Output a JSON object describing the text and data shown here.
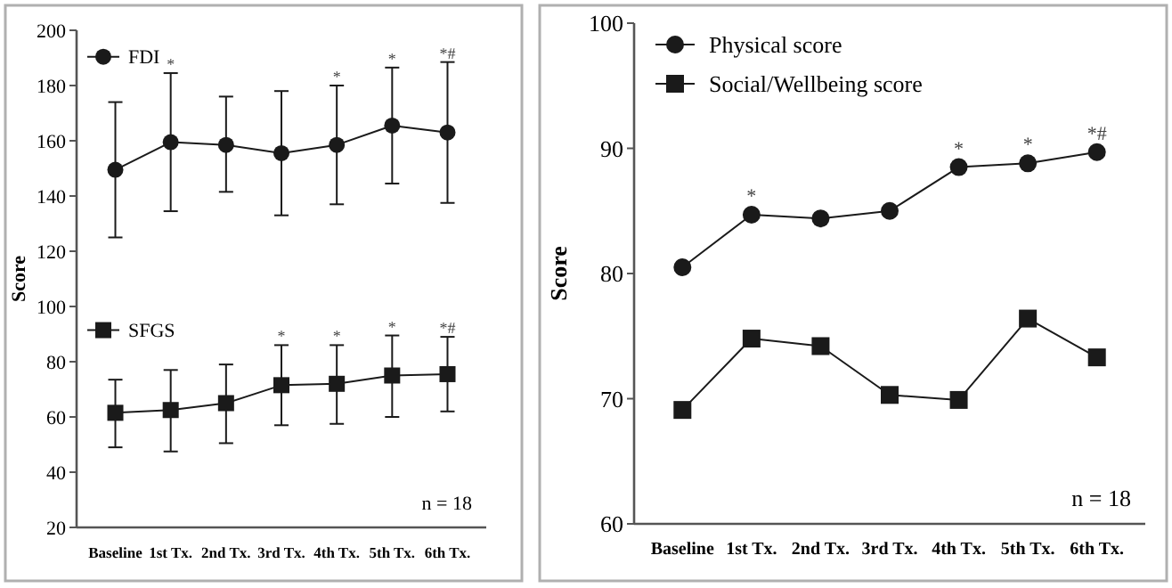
{
  "chart_data": [
    {
      "type": "line",
      "ylabel": "Score",
      "categories": [
        "Baseline",
        "1st Tx.",
        "2nd Tx.",
        "3rd Tx.",
        "4th Tx.",
        "5th Tx.",
        "6th Tx."
      ],
      "ylim": [
        20,
        200
      ],
      "yticks": [
        20,
        40,
        60,
        80,
        100,
        120,
        140,
        160,
        180,
        200
      ],
      "legend": "top left",
      "series": [
        {
          "name": "FDI",
          "color": "#1a1a1a",
          "marker": "circle",
          "values": [
            149.5,
            159.5,
            158.5,
            155.5,
            158.5,
            165.5,
            163
          ],
          "errors": [
            [
              125,
              174
            ],
            [
              134.5,
              184.5
            ],
            [
              141.5,
              176
            ],
            [
              133,
              178
            ],
            [
              137,
              180
            ],
            [
              144.5,
              186.5
            ],
            [
              137.5,
              188.5
            ]
          ]
        },
        {
          "name": "SFGS",
          "color": "#1a1a1a",
          "marker": "square",
          "values": [
            61.5,
            62.5,
            65,
            71.5,
            72,
            75,
            75.5
          ],
          "errors": [
            [
              49,
              73.5
            ],
            [
              47.5,
              77
            ],
            [
              50.5,
              79
            ],
            [
              57,
              86
            ],
            [
              57.5,
              86
            ],
            [
              60,
              89.5
            ],
            [
              62,
              89
            ]
          ]
        }
      ],
      "annotations": [
        {
          "text": "*",
          "x": "1st Tx.",
          "y": 184.5
        },
        {
          "text": "*",
          "x": "4th Tx.",
          "y": 180
        },
        {
          "text": "*",
          "x": "5th Tx.",
          "y": 186.5
        },
        {
          "text": "*#",
          "x": "6th Tx.",
          "y": 188.5
        },
        {
          "text": "*",
          "x": "3rd Tx.",
          "y": 86
        },
        {
          "text": "*",
          "x": "4th Tx.",
          "y": 86
        },
        {
          "text": "*",
          "x": "5th Tx.",
          "y": 89.5
        },
        {
          "text": "*#",
          "x": "6th Tx.",
          "y": 89
        },
        "n = 18"
      ]
    },
    {
      "type": "line",
      "ylabel": "Score",
      "categories": [
        "Baseline",
        "1st Tx.",
        "2nd Tx.",
        "3rd Tx.",
        "4th Tx.",
        "5th Tx.",
        "6th Tx."
      ],
      "ylim": [
        60,
        100
      ],
      "yticks": [
        60,
        70,
        80,
        90,
        100
      ],
      "legend": "top left",
      "series": [
        {
          "name": "Physical score",
          "color": "#1a1a1a",
          "marker": "circle",
          "values": [
            80.5,
            84.7,
            84.4,
            85,
            88.5,
            88.8,
            89.7
          ]
        },
        {
          "name": "Social/Wellbeing score",
          "color": "#1a1a1a",
          "marker": "square",
          "values": [
            69.1,
            74.8,
            74.2,
            70.3,
            69.9,
            76.4,
            73.3
          ]
        }
      ],
      "annotations": [
        {
          "text": "*",
          "x": "1st Tx.",
          "y": 84.7
        },
        {
          "text": "*",
          "x": "4th Tx.",
          "y": 88.5
        },
        {
          "text": "*",
          "x": "5th Tx.",
          "y": 88.8
        },
        {
          "text": "*#",
          "x": "6th Tx.",
          "y": 89.7
        },
        "n = 18"
      ]
    }
  ]
}
